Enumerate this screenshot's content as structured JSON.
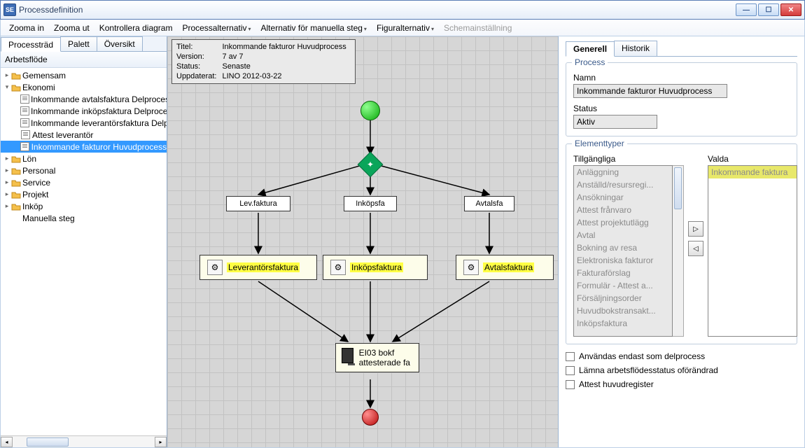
{
  "window": {
    "appicon_text": "SE",
    "title": "Processdefinition"
  },
  "menu": {
    "zoom_in": "Zooma in",
    "zoom_out": "Zooma ut",
    "validate": "Kontrollera diagram",
    "proc_alt": "Processalternativ",
    "manual_alt": "Alternativ för manuella steg",
    "figure_alt": "Figuralternativ",
    "schema": "Schemainställning"
  },
  "left_tabs": {
    "tree": "Processträd",
    "palette": "Palett",
    "overview": "Översikt"
  },
  "tree": {
    "header": "Arbetsflöde",
    "root1": "Gemensam",
    "root2": "Ekonomi",
    "eco1": "Inkommande avtalsfaktura Delprocess",
    "eco2": "Inkommande inköpsfaktura Delprocess",
    "eco3": "Inkommande leverantörsfaktura Delprocess",
    "eco4": "Attest leverantör",
    "eco5": "Inkommande fakturor Huvudprocess",
    "root3": "Lön",
    "root4": "Personal",
    "root5": "Service",
    "root6": "Projekt",
    "root7": "Inköp",
    "root8": "Manuella steg"
  },
  "meta": {
    "k1": "Titel:",
    "v1": "Inkommande fakturor Huvudprocess",
    "k2": "Version:",
    "v2": "7 av 7",
    "k3": "Status:",
    "v3": "Senaste",
    "k4": "Uppdaterat:",
    "v4": "LINO  2012-03-22"
  },
  "diagram": {
    "gateway_symbol": "✦",
    "lane1": "Lev.faktura",
    "lane2": "Inköpsfa",
    "lane3": "Avtalsfa",
    "task1": "Leverantörsfaktura",
    "task2": "Inköpsfaktura",
    "task3": "Avtalsfaktura",
    "task_gear": "⚙",
    "final": "EI03 bokf attesterade fa"
  },
  "right": {
    "tab_general": "Generell",
    "tab_history": "Historik",
    "grp_process": "Process",
    "lbl_name": "Namn",
    "val_name": "Inkommande fakturor Huvudprocess",
    "lbl_status": "Status",
    "val_status": "Aktiv",
    "grp_etypes": "Elementtyper",
    "lbl_avail": "Tillgängliga",
    "lbl_sel": "Valda",
    "avail": [
      "Anläggning",
      "Anställd/resursregi...",
      "Ansökningar",
      "Attest frånvaro",
      "Attest projektutlägg",
      "Avtal",
      "Bokning av resa",
      "Elektroniska fakturor",
      "Fakturaförslag",
      "Formulär - Attest a...",
      "Försäljningsorder",
      "Huvudbokstransakt...",
      "Inköpsfaktura"
    ],
    "selected": "Inkommande faktura",
    "btn_right": "▷",
    "btn_left": "◁",
    "chk1": "Användas endast som delprocess",
    "chk2": "Lämna arbetsflödesstatus oförändrad",
    "chk3": "Attest huvudregister"
  }
}
